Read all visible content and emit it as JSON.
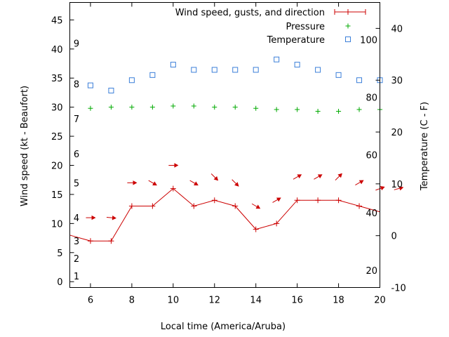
{
  "chart_data": {
    "type": "line",
    "xlabel": "Local time (America/Aruba)",
    "ylabel_left": "Wind speed (kt - Beaufort)",
    "ylabel_right": "Temperature (C - F)",
    "xlim": [
      5,
      20
    ],
    "x_ticks": [
      "6",
      "8",
      "10",
      "12",
      "14",
      "16",
      "18",
      "20"
    ],
    "ylim_left": [
      -1,
      48
    ],
    "y_ticks_left": [
      "0",
      "5",
      "10",
      "15",
      "20",
      "25",
      "30",
      "35",
      "40",
      "45"
    ],
    "ylim_right_celsius": [
      -10,
      45
    ],
    "y_ticks_right_celsius": [
      "-10",
      "0",
      "10",
      "20",
      "30",
      "40"
    ],
    "beaufort_labels": [
      {
        "text": "1",
        "kt": 1
      },
      {
        "text": "2",
        "kt": 4
      },
      {
        "text": "3",
        "kt": 7
      },
      {
        "text": "4",
        "kt": 11
      },
      {
        "text": "5",
        "kt": 17
      },
      {
        "text": "6",
        "kt": 22
      },
      {
        "text": "7",
        "kt": 28
      },
      {
        "text": "8",
        "kt": 34
      },
      {
        "text": "9",
        "kt": 41
      }
    ],
    "fahrenheit_labels": [
      {
        "text": "20",
        "celsius": -6.7
      },
      {
        "text": "40",
        "celsius": 4.4
      },
      {
        "text": "60",
        "celsius": 15.6
      },
      {
        "text": "80",
        "celsius": 26.7
      },
      {
        "text": "100",
        "celsius": 37.8
      }
    ],
    "legend": {
      "position": "top-right",
      "entries": [
        "Wind speed, gusts, and direction",
        "Pressure",
        "Temperature"
      ]
    },
    "grid": false,
    "series": [
      {
        "name": "Wind speed, gusts, and direction",
        "color": "#cc0000",
        "x": [
          5,
          6,
          7,
          8,
          9,
          10,
          11,
          12,
          13,
          14,
          15,
          16,
          17,
          18,
          19,
          20
        ],
        "values": [
          8,
          7,
          7,
          13,
          13,
          16,
          13,
          14,
          13,
          9,
          10,
          14,
          14,
          14,
          13,
          12
        ]
      },
      {
        "name": "Pressure",
        "color": "#00aa00",
        "x": [
          6,
          7,
          8,
          9,
          10,
          11,
          12,
          13,
          14,
          15,
          16,
          17,
          18,
          19,
          20
        ],
        "values": [
          29.8,
          30,
          30,
          30,
          30.2,
          30.2,
          30,
          30,
          29.8,
          29.6,
          29.6,
          29.3,
          29.3,
          29.6,
          29.6
        ]
      },
      {
        "name": "Temperature",
        "color": "#3b7fd9",
        "unit": "celsius",
        "x": [
          6,
          7,
          8,
          9,
          10,
          11,
          12,
          13,
          14,
          15,
          16,
          17,
          18,
          19,
          20
        ],
        "values": [
          29,
          28,
          30,
          31,
          33,
          32,
          32,
          32,
          32,
          34,
          33,
          32,
          31,
          30,
          30
        ]
      }
    ],
    "wind_direction": {
      "color": "#cc0000",
      "x": [
        6,
        7,
        8,
        9,
        10,
        11,
        12,
        13,
        14,
        15,
        16,
        17,
        18,
        19,
        20,
        20.9
      ],
      "kt": [
        11,
        11,
        17,
        17,
        20,
        17,
        18,
        17,
        13,
        14,
        18,
        18,
        18,
        17,
        16,
        16
      ],
      "bearing_deg": [
        90,
        95,
        90,
        120,
        90,
        120,
        135,
        135,
        120,
        60,
        60,
        60,
        45,
        60,
        70,
        75
      ]
    }
  }
}
